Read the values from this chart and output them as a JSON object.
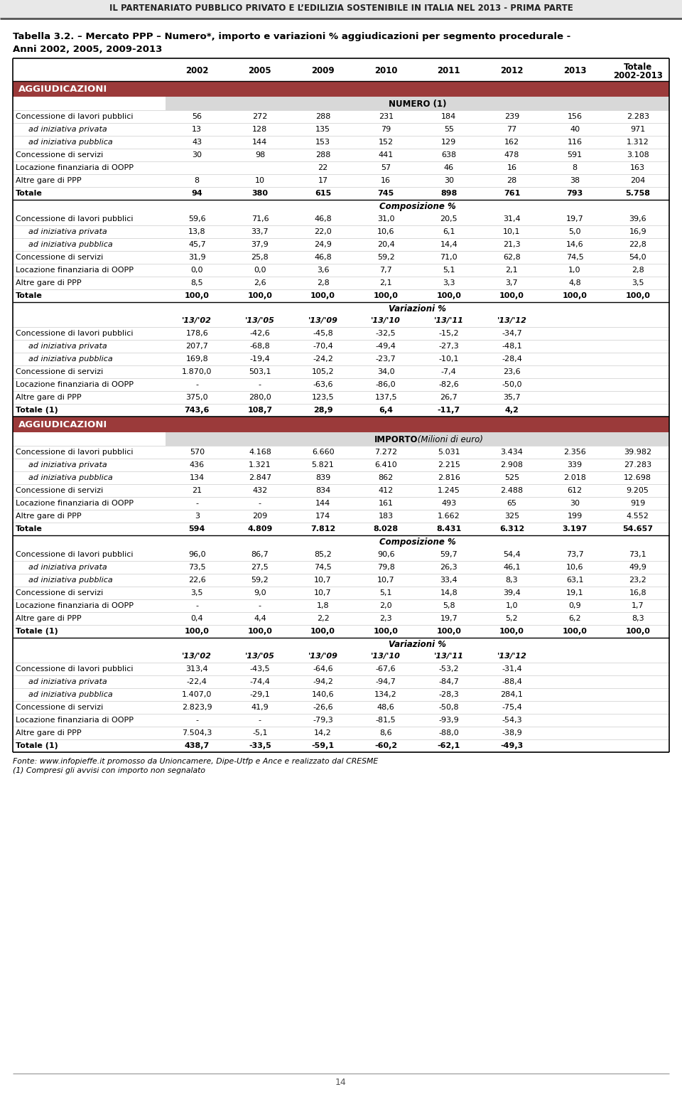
{
  "page_header": "IL PARTENARIATO PUBBLICO PRIVATO E L’EDILIZIA SOSTENIBILE IN ITALIA NEL 2013 - PRIMA PARTE",
  "table_title_line1": "Tabella 3.2. – Mercato PPP – Numero*, importo e variazioni % aggiudicazioni per segmento procedurale -",
  "table_title_line2": "Anni 2002, 2005, 2009-2013",
  "col_headers": [
    "2002",
    "2005",
    "2009",
    "2010",
    "2011",
    "2012",
    "2013",
    "Totale\n2002-2013"
  ],
  "section1_header": "AGGIUDICAZIONI",
  "section1_subheader": "NUMERO (1)",
  "numero_rows": [
    [
      "Concessione di lavori pubblici",
      "56",
      "272",
      "288",
      "231",
      "184",
      "239",
      "156",
      "2.283",
      false,
      false
    ],
    [
      "ad iniziativa privata",
      "13",
      "128",
      "135",
      "79",
      "55",
      "77",
      "40",
      "971",
      false,
      true
    ],
    [
      "ad iniziativa pubblica",
      "43",
      "144",
      "153",
      "152",
      "129",
      "162",
      "116",
      "1.312",
      false,
      true
    ],
    [
      "Concessione di servizi",
      "30",
      "98",
      "288",
      "441",
      "638",
      "478",
      "591",
      "3.108",
      false,
      false
    ],
    [
      "Locazione finanziaria di OOPP",
      "",
      "",
      "22",
      "57",
      "46",
      "16",
      "8",
      "163",
      false,
      false
    ],
    [
      "Altre gare di PPP",
      "8",
      "10",
      "17",
      "16",
      "30",
      "28",
      "38",
      "204",
      false,
      false
    ],
    [
      "Totale",
      "94",
      "380",
      "615",
      "745",
      "898",
      "761",
      "793",
      "5.758",
      true,
      false
    ]
  ],
  "composizione_header": "Composizione %",
  "composizione_rows": [
    [
      "Concessione di lavori pubblici",
      "59,6",
      "71,6",
      "46,8",
      "31,0",
      "20,5",
      "31,4",
      "19,7",
      "39,6",
      false,
      false
    ],
    [
      "ad iniziativa privata",
      "13,8",
      "33,7",
      "22,0",
      "10,6",
      "6,1",
      "10,1",
      "5,0",
      "16,9",
      false,
      true
    ],
    [
      "ad iniziativa pubblica",
      "45,7",
      "37,9",
      "24,9",
      "20,4",
      "14,4",
      "21,3",
      "14,6",
      "22,8",
      false,
      true
    ],
    [
      "Concessione di servizi",
      "31,9",
      "25,8",
      "46,8",
      "59,2",
      "71,0",
      "62,8",
      "74,5",
      "54,0",
      false,
      false
    ],
    [
      "Locazione finanziaria di OOPP",
      "0,0",
      "0,0",
      "3,6",
      "7,7",
      "5,1",
      "2,1",
      "1,0",
      "2,8",
      false,
      false
    ],
    [
      "Altre gare di PPP",
      "8,5",
      "2,6",
      "2,8",
      "2,1",
      "3,3",
      "3,7",
      "4,8",
      "3,5",
      false,
      false
    ],
    [
      "Totale",
      "100,0",
      "100,0",
      "100,0",
      "100,0",
      "100,0",
      "100,0",
      "100,0",
      "100,0",
      true,
      false
    ]
  ],
  "variazioni_header": "Variazioni %",
  "variazioni_col_headers": [
    "'13/'02",
    "'13/'05",
    "'13/'09",
    "'13/'10",
    "'13/'11",
    "'13/'12"
  ],
  "variazioni_rows": [
    [
      "Concessione di lavori pubblici",
      "178,6",
      "-42,6",
      "-45,8",
      "-32,5",
      "-15,2",
      "-34,7",
      false,
      false
    ],
    [
      "ad iniziativa privata",
      "207,7",
      "-68,8",
      "-70,4",
      "-49,4",
      "-27,3",
      "-48,1",
      false,
      true
    ],
    [
      "ad iniziativa pubblica",
      "169,8",
      "-19,4",
      "-24,2",
      "-23,7",
      "-10,1",
      "-28,4",
      false,
      true
    ],
    [
      "Concessione di servizi",
      "1.870,0",
      "503,1",
      "105,2",
      "34,0",
      "-7,4",
      "23,6",
      false,
      false
    ],
    [
      "Locazione finanziaria di OOPP",
      "-",
      "-",
      "-63,6",
      "-86,0",
      "-82,6",
      "-50,0",
      false,
      false
    ],
    [
      "Altre gare di PPP",
      "375,0",
      "280,0",
      "123,5",
      "137,5",
      "26,7",
      "35,7",
      false,
      false
    ],
    [
      "Totale (1)",
      "743,6",
      "108,7",
      "28,9",
      "6,4",
      "-11,7",
      "4,2",
      true,
      false
    ]
  ],
  "section2_header": "AGGIUDICAZIONI",
  "section2_subheader_bold": "IMPORTO",
  "section2_subheader_italic": " (Milioni di euro)",
  "importo_rows": [
    [
      "Concessione di lavori pubblici",
      "570",
      "4.168",
      "6.660",
      "7.272",
      "5.031",
      "3.434",
      "2.356",
      "39.982",
      false,
      false
    ],
    [
      "ad iniziativa privata",
      "436",
      "1.321",
      "5.821",
      "6.410",
      "2.215",
      "2.908",
      "339",
      "27.283",
      false,
      true
    ],
    [
      "ad iniziativa pubblica",
      "134",
      "2.847",
      "839",
      "862",
      "2.816",
      "525",
      "2.018",
      "12.698",
      false,
      true
    ],
    [
      "Concessione di servizi",
      "21",
      "432",
      "834",
      "412",
      "1.245",
      "2.488",
      "612",
      "9.205",
      false,
      false
    ],
    [
      "Locazione finanziaria di OOPP",
      "-",
      "-",
      "144",
      "161",
      "493",
      "65",
      "30",
      "919",
      false,
      false
    ],
    [
      "Altre gare di PPP",
      "3",
      "209",
      "174",
      "183",
      "1.662",
      "325",
      "199",
      "4.552",
      false,
      false
    ],
    [
      "Totale",
      "594",
      "4.809",
      "7.812",
      "8.028",
      "8.431",
      "6.312",
      "3.197",
      "54.657",
      true,
      false
    ]
  ],
  "composizione2_header": "Composizione %",
  "composizione2_rows": [
    [
      "Concessione di lavori pubblici",
      "96,0",
      "86,7",
      "85,2",
      "90,6",
      "59,7",
      "54,4",
      "73,7",
      "73,1",
      false,
      false
    ],
    [
      "ad iniziativa privata",
      "73,5",
      "27,5",
      "74,5",
      "79,8",
      "26,3",
      "46,1",
      "10,6",
      "49,9",
      false,
      true
    ],
    [
      "ad iniziativa pubblica",
      "22,6",
      "59,2",
      "10,7",
      "10,7",
      "33,4",
      "8,3",
      "63,1",
      "23,2",
      false,
      true
    ],
    [
      "Concessione di servizi",
      "3,5",
      "9,0",
      "10,7",
      "5,1",
      "14,8",
      "39,4",
      "19,1",
      "16,8",
      false,
      false
    ],
    [
      "Locazione finanziaria di OOPP",
      "-",
      "-",
      "1,8",
      "2,0",
      "5,8",
      "1,0",
      "0,9",
      "1,7",
      false,
      false
    ],
    [
      "Altre gare di PPP",
      "0,4",
      "4,4",
      "2,2",
      "2,3",
      "19,7",
      "5,2",
      "6,2",
      "8,3",
      false,
      false
    ],
    [
      "Totale (1)",
      "100,0",
      "100,0",
      "100,0",
      "100,0",
      "100,0",
      "100,0",
      "100,0",
      "100,0",
      true,
      false
    ]
  ],
  "variazioni2_header": "Variazioni %",
  "variazioni2_col_headers": [
    "'13/'02",
    "'13/'05",
    "'13/'09",
    "'13/'10",
    "'13/'11",
    "'13/'12"
  ],
  "variazioni2_rows": [
    [
      "Concessione di lavori pubblici",
      "313,4",
      "-43,5",
      "-64,6",
      "-67,6",
      "-53,2",
      "-31,4",
      false,
      false
    ],
    [
      "ad iniziativa privata",
      "-22,4",
      "-74,4",
      "-94,2",
      "-94,7",
      "-84,7",
      "-88,4",
      false,
      true
    ],
    [
      "ad iniziativa pubblica",
      "1.407,0",
      "-29,1",
      "140,6",
      "134,2",
      "-28,3",
      "284,1",
      false,
      true
    ],
    [
      "Concessione di servizi",
      "2.823,9",
      "41,9",
      "-26,6",
      "48,6",
      "-50,8",
      "-75,4",
      false,
      false
    ],
    [
      "Locazione finanziaria di OOPP",
      "-",
      "-",
      "-79,3",
      "-81,5",
      "-93,9",
      "-54,3",
      false,
      false
    ],
    [
      "Altre gare di PPP",
      "7.504,3",
      "-5,1",
      "14,2",
      "8,6",
      "-88,0",
      "-38,9",
      false,
      false
    ],
    [
      "Totale (1)",
      "438,7",
      "-33,5",
      "-59,1",
      "-60,2",
      "-62,1",
      "-49,3",
      true,
      false
    ]
  ],
  "footer1": "Fonte: www.infopieffe.it promosso da Unioncamere, Dipe-Utfp e Ance e realizzato dal CRESME",
  "footer2": "(1) Compresi gli avvisi con importo non segnalato",
  "page_number": "14",
  "header_bg": "#9B3A3A",
  "subheader_bg": "#D8D8D8",
  "row_line_color": "#CCCCCC",
  "border_color": "#000000"
}
